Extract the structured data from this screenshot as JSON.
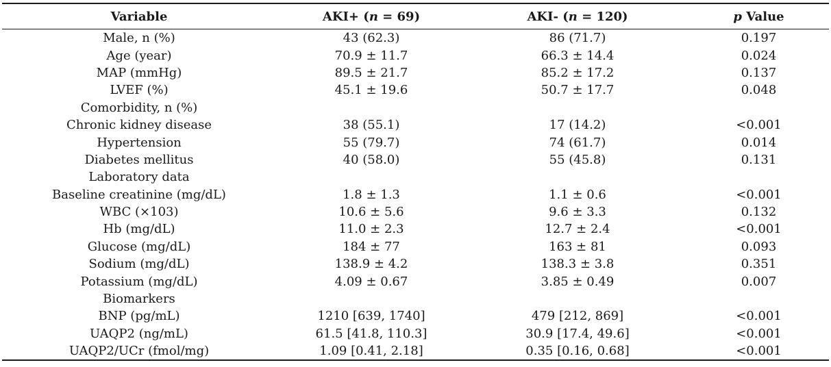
{
  "table": {
    "headers": [
      {
        "label": "Variable"
      },
      {
        "label_prefix": "AKI+ (",
        "label_var": "n",
        "label_suffix": " = 69)"
      },
      {
        "label_prefix": "AKI- (",
        "label_var": "n",
        "label_suffix": " = 120)"
      },
      {
        "label_var": "p",
        "label_suffix": " Value"
      }
    ],
    "rows": [
      {
        "variable": "Male, n (%)",
        "aki_pos": "43 (62.3)",
        "aki_neg": "86 (71.7)",
        "p": "0.197"
      },
      {
        "variable": "Age (year)",
        "aki_pos": "70.9 ± 11.7",
        "aki_neg": "66.3 ± 14.4",
        "p": "0.024"
      },
      {
        "variable": "MAP (mmHg)",
        "aki_pos": "89.5 ± 21.7",
        "aki_neg": "85.2 ± 17.2",
        "p": "0.137"
      },
      {
        "variable": "LVEF (%)",
        "aki_pos": "45.1 ± 19.6",
        "aki_neg": "50.7 ± 17.7",
        "p": "0.048"
      },
      {
        "variable": "Comorbidity, n (%)",
        "aki_pos": "",
        "aki_neg": "",
        "p": ""
      },
      {
        "variable": "Chronic kidney disease",
        "aki_pos": "38 (55.1)",
        "aki_neg": "17 (14.2)",
        "p": "<0.001"
      },
      {
        "variable": "Hypertension",
        "aki_pos": "55 (79.7)",
        "aki_neg": "74 (61.7)",
        "p": "0.014"
      },
      {
        "variable": "Diabetes mellitus",
        "aki_pos": "40 (58.0)",
        "aki_neg": "55 (45.8)",
        "p": "0.131"
      },
      {
        "variable": "Laboratory data",
        "aki_pos": "",
        "aki_neg": "",
        "p": ""
      },
      {
        "variable": "Baseline creatinine (mg/dL)",
        "aki_pos": "1.8 ± 1.3",
        "aki_neg": "1.1 ± 0.6",
        "p": "<0.001"
      },
      {
        "variable": "WBC (×103)",
        "aki_pos": "10.6 ± 5.6",
        "aki_neg": "9.6 ± 3.3",
        "p": "0.132"
      },
      {
        "variable": "Hb (mg/dL)",
        "aki_pos": "11.0 ± 2.3",
        "aki_neg": "12.7 ± 2.4",
        "p": "<0.001"
      },
      {
        "variable": "Glucose (mg/dL)",
        "aki_pos": "184 ± 77",
        "aki_neg": "163 ± 81",
        "p": "0.093"
      },
      {
        "variable": "Sodium (mg/dL)",
        "aki_pos": "138.9 ± 4.2",
        "aki_neg": "138.3 ± 3.8",
        "p": "0.351"
      },
      {
        "variable": "Potassium (mg/dL)",
        "aki_pos": "4.09 ± 0.67",
        "aki_neg": "3.85 ± 0.49",
        "p": "0.007"
      },
      {
        "variable": "Biomarkers",
        "aki_pos": "",
        "aki_neg": "",
        "p": ""
      },
      {
        "variable": "BNP (pg/mL)",
        "aki_pos": "1210 [639, 1740]",
        "aki_neg": "479 [212, 869]",
        "p": "<0.001"
      },
      {
        "variable": "UAQP2 (ng/mL)",
        "aki_pos": "61.5 [41.8, 110.3]",
        "aki_neg": "30.9 [17.4, 49.6]",
        "p": "<0.001"
      },
      {
        "variable": "UAQP2/UCr (fmol/mg)",
        "aki_pos": "1.09 [0.41, 2.18]",
        "aki_neg": "0.35 [0.16, 0.68]",
        "p": "<0.001"
      }
    ]
  }
}
